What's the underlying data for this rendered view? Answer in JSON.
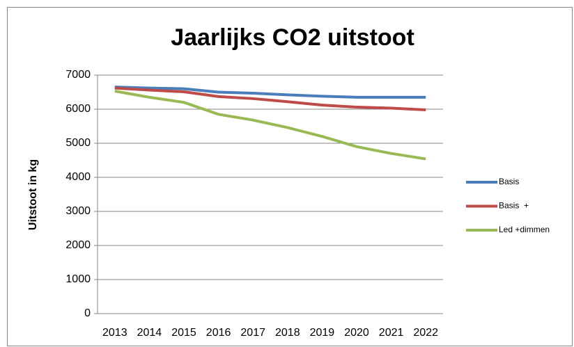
{
  "chart_data": {
    "type": "line",
    "title": "Jaarlijks CO2 uitstoot",
    "y_label": "Uitstoot in kg",
    "categories": [
      "2013",
      "2014",
      "2015",
      "2016",
      "2017",
      "2018",
      "2019",
      "2020",
      "2021",
      "2022"
    ],
    "series": [
      {
        "name": "Basis",
        "color": "#4a7ebb",
        "values": [
          6650,
          6620,
          6600,
          6500,
          6470,
          6420,
          6380,
          6350,
          6350,
          6350
        ]
      },
      {
        "name": "Basis  +",
        "color": "#be4b48",
        "values": [
          6620,
          6560,
          6510,
          6370,
          6310,
          6220,
          6120,
          6060,
          6030,
          5980
        ]
      },
      {
        "name": "Led +dimmen",
        "color": "#98b954",
        "values": [
          6530,
          6350,
          6200,
          5850,
          5680,
          5460,
          5200,
          4900,
          4700,
          4540
        ]
      }
    ],
    "ylim": [
      0,
      7000
    ],
    "yticks": [
      0,
      1000,
      2000,
      3000,
      4000,
      5000,
      6000,
      7000
    ],
    "grid": true,
    "legend": "right"
  }
}
